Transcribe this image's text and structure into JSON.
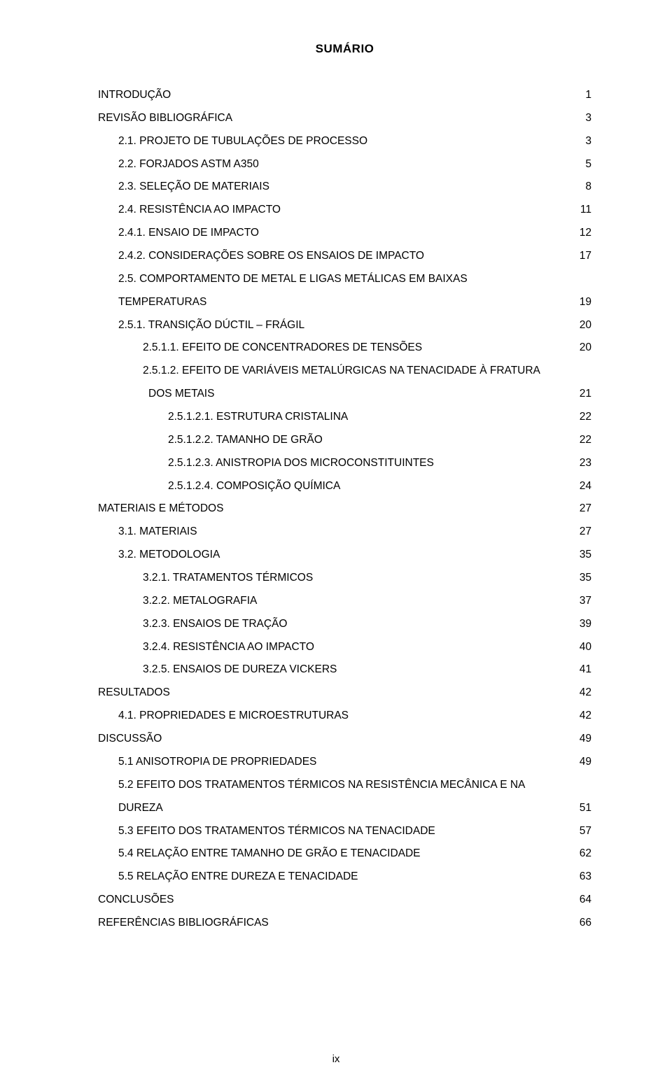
{
  "title": "SUMÁRIO",
  "page_footer": "ix",
  "toc": [
    {
      "indent": 0,
      "label": "INTRODUÇÃO",
      "page": "1"
    },
    {
      "indent": 0,
      "label": "REVISÃO BIBLIOGRÁFICA",
      "page": "3"
    },
    {
      "indent": 1,
      "label": "2.1.   PROJETO DE TUBULAÇÕES DE PROCESSO",
      "page": "3"
    },
    {
      "indent": 1,
      "label": "2.2.   FORJADOS ASTM A350",
      "page": "5"
    },
    {
      "indent": 1,
      "label": "2.3.   SELEÇÃO DE MATERIAIS",
      "page": "8"
    },
    {
      "indent": 1,
      "label": "2.4.   RESISTÊNCIA AO IMPACTO",
      "page": "11"
    },
    {
      "indent": 1,
      "label": "2.4.1.   ENSAIO DE IMPACTO",
      "page": "12"
    },
    {
      "indent": 1,
      "label": "2.4.2.   CONSIDERAÇÕES SOBRE OS ENSAIOS DE IMPACTO",
      "page": "17"
    },
    {
      "indent": 1,
      "label": "2.5.   COMPORTAMENTO DE METAL E LIGAS METÁLICAS EM BAIXAS"
    },
    {
      "indent": 1,
      "label": "TEMPERATURAS",
      "page": "19"
    },
    {
      "indent": 1,
      "label": "2.5.1.   TRANSIÇÃO DÚCTIL – FRÁGIL",
      "page": "20"
    },
    {
      "indent": 2,
      "label": "2.5.1.1.   EFEITO DE CONCENTRADORES DE TENSÕES",
      "page": "20"
    },
    {
      "indent": 2,
      "label": "2.5.1.2.   EFEITO DE VARIÁVEIS METALÚRGICAS NA TENACIDADE À FRATURA"
    },
    {
      "indent": "wrap",
      "label": "DOS METAIS",
      "page": "21"
    },
    {
      "indent": 3,
      "label": "2.5.1.2.1.   ESTRUTURA CRISTALINA",
      "page": "22"
    },
    {
      "indent": 3,
      "label": "2.5.1.2.2.   TAMANHO DE GRÃO",
      "page": "22"
    },
    {
      "indent": 3,
      "label": "2.5.1.2.3.   ANISTROPIA DOS MICROCONSTITUINTES",
      "page": "23"
    },
    {
      "indent": 3,
      "label": "2.5.1.2.4.   COMPOSIÇÃO QUÍMICA",
      "page": "24"
    },
    {
      "indent": 0,
      "label": "MATERIAIS E MÉTODOS",
      "page": "27"
    },
    {
      "indent": 1,
      "label": "3.1.   MATERIAIS",
      "page": "27"
    },
    {
      "indent": 1,
      "label": "3.2.   METODOLOGIA",
      "page": "35"
    },
    {
      "indent": 2,
      "label": "3.2.1.   TRATAMENTOS TÉRMICOS",
      "page": "35"
    },
    {
      "indent": 2,
      "label": "3.2.2.   METALOGRAFIA",
      "page": "37"
    },
    {
      "indent": 2,
      "label": "3.2.3.   ENSAIOS DE TRAÇÃO",
      "page": "39"
    },
    {
      "indent": 2,
      "label": "3.2.4.   RESISTÊNCIA AO IMPACTO",
      "page": "40"
    },
    {
      "indent": 2,
      "label": "3.2.5.   ENSAIOS DE DUREZA VICKERS",
      "page": "41"
    },
    {
      "indent": 0,
      "label": "RESULTADOS",
      "page": "42"
    },
    {
      "indent": 1,
      "label": "4.1.   PROPRIEDADES E MICROESTRUTURAS",
      "page": "42"
    },
    {
      "indent": 0,
      "label": "DISCUSSÃO",
      "page": "49"
    },
    {
      "indent": 1,
      "label": "5.1   ANISOTROPIA DE PROPRIEDADES",
      "page": "49"
    },
    {
      "indent": 1,
      "label": "5.2   EFEITO DOS TRATAMENTOS TÉRMICOS NA RESISTÊNCIA MECÂNICA E NA"
    },
    {
      "indent": 1,
      "label": "DUREZA",
      "page": "51"
    },
    {
      "indent": 1,
      "label": "5.3   EFEITO DOS TRATAMENTOS TÉRMICOS NA TENACIDADE",
      "page": "57"
    },
    {
      "indent": 1,
      "label": "5.4   RELAÇÃO ENTRE TAMANHO DE GRÃO E TENACIDADE",
      "page": "62"
    },
    {
      "indent": 1,
      "label": "5.5   RELAÇÃO ENTRE DUREZA E TENACIDADE",
      "page": "63"
    },
    {
      "indent": 0,
      "label": "CONCLUSÕES",
      "page": "64"
    },
    {
      "indent": 0,
      "label": "REFERÊNCIAS BIBLIOGRÁFICAS",
      "page": "66"
    }
  ]
}
